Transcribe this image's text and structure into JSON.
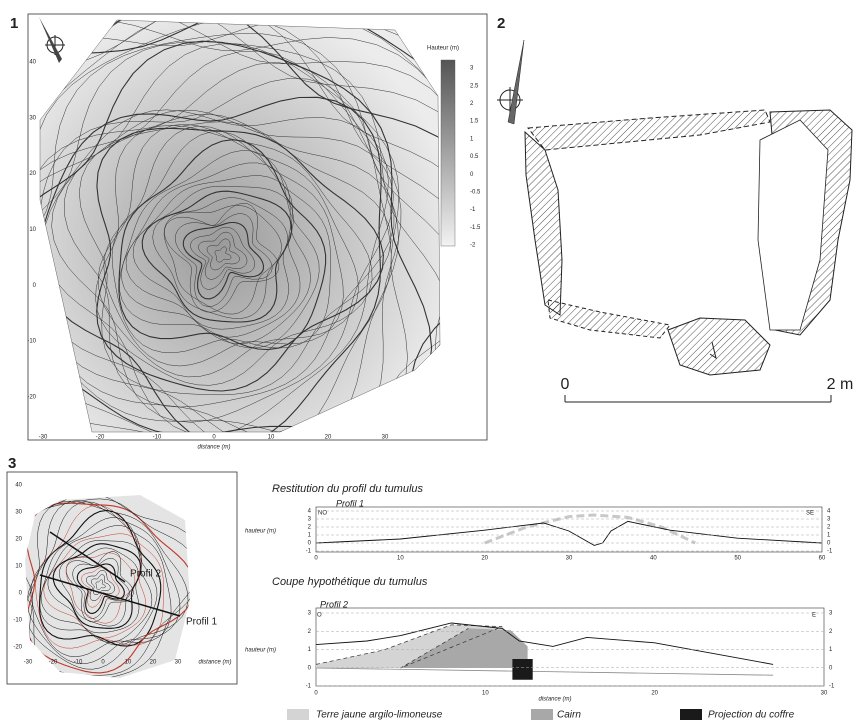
{
  "panel1": {
    "label": "1",
    "legend_title": "Hauteur (m)",
    "legend_ticks": [
      3,
      2.5,
      2,
      1.5,
      1,
      0.5,
      0,
      -0.5,
      -1,
      -1.5,
      -2
    ],
    "yticks": [
      40,
      30,
      20,
      10,
      0,
      -10,
      -20
    ],
    "xticks": [
      -30,
      -20,
      -10,
      0,
      10,
      20,
      30
    ],
    "xlabel": "distance (m)"
  },
  "panel2": {
    "label": "2",
    "scale_start": "0",
    "scale_end": "2 m"
  },
  "panel3": {
    "label": "3",
    "yticks": [
      40,
      30,
      20,
      10,
      0,
      -10,
      -20
    ],
    "xticks": [
      -30,
      -20,
      -10,
      0,
      10,
      20,
      30
    ],
    "xlabel": "distance (m)",
    "profile_a": "Profil 2",
    "profile_b": "Profil 1"
  },
  "profile1": {
    "title": "Restitution du profil du tumulus",
    "name": "Profil 1",
    "left": "NO",
    "right": "SE",
    "ylabel": "hauteur (m)",
    "yticks": [
      4,
      3,
      2,
      1,
      0,
      -1
    ],
    "xticks": [
      0,
      10,
      20,
      30,
      40,
      50,
      60
    ]
  },
  "profile2": {
    "title": "Coupe hypothétique du tumulus",
    "name": "Profil 2",
    "left": "O",
    "right": "E",
    "ylabel": "hauteur (m)",
    "yticks": [
      3,
      2,
      1,
      0,
      -1
    ],
    "xticks": [
      0,
      10,
      20,
      30
    ],
    "xlabel": "distance (m)"
  },
  "legend": [
    "Terre jaune argilo-limoneuse",
    "Cairn",
    "Projection du coffre"
  ]
}
